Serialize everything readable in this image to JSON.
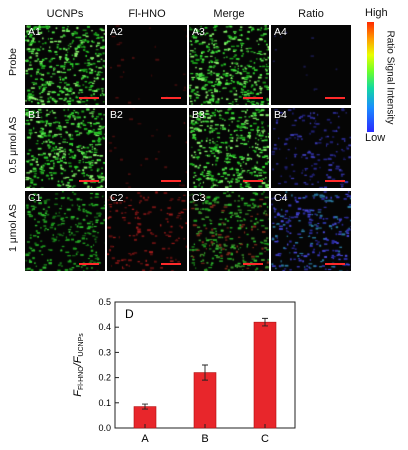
{
  "columns": [
    "UCNPs",
    "Fl-HNO",
    "Merge",
    "Ratio"
  ],
  "colorbar": {
    "high": "High",
    "low": "Low",
    "title": "Ratio Signal Intensity"
  },
  "rows": [
    {
      "label": "Probe",
      "panels": [
        {
          "id": "A1",
          "kind": "green"
        },
        {
          "id": "A2",
          "kind": "red-faint"
        },
        {
          "id": "A3",
          "kind": "green"
        },
        {
          "id": "A4",
          "kind": "ratio-faint"
        }
      ]
    },
    {
      "label": "0.5 μmol AS",
      "panels": [
        {
          "id": "B1",
          "kind": "green"
        },
        {
          "id": "B2",
          "kind": "red-faint"
        },
        {
          "id": "B3",
          "kind": "green"
        },
        {
          "id": "B4",
          "kind": "ratio-mid"
        }
      ]
    },
    {
      "label": "1 μmol AS",
      "panels": [
        {
          "id": "C1",
          "kind": "green-dim"
        },
        {
          "id": "C2",
          "kind": "red"
        },
        {
          "id": "C3",
          "kind": "merge"
        },
        {
          "id": "C4",
          "kind": "ratio-strong"
        }
      ]
    }
  ],
  "chart_data": {
    "type": "bar",
    "panel_label": "D",
    "categories": [
      "A",
      "B",
      "C"
    ],
    "values": [
      0.085,
      0.22,
      0.42
    ],
    "errors": [
      0.01,
      0.03,
      0.015
    ],
    "ylabel_main": "F",
    "ylabel_sub1": "Fl-HNO",
    "ylabel_sep": "/F",
    "ylabel_sub2": "UCNPs",
    "ylim": [
      0,
      0.5
    ],
    "yticks": [
      "0.0",
      "0.1",
      "0.2",
      "0.3",
      "0.4",
      "0.5"
    ],
    "bar_color": "#e8262b"
  }
}
